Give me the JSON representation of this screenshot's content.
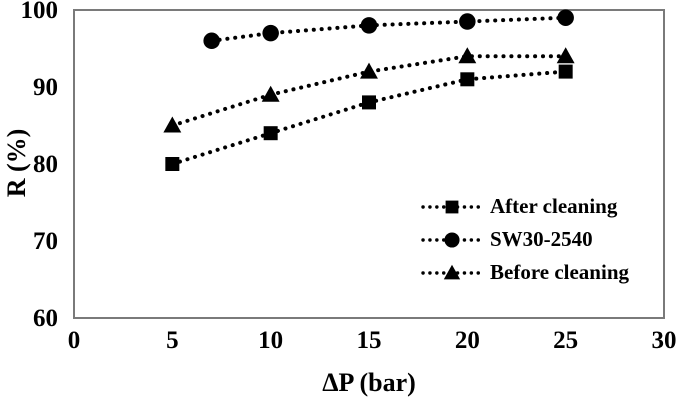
{
  "figure": {
    "background": "#ffffff"
  },
  "chart_data": {
    "type": "line",
    "title": "",
    "xlabel": "ΔP (bar)",
    "ylabel": "R (%)",
    "xlim": [
      0,
      30
    ],
    "ylim": [
      60,
      100
    ],
    "xticks": [
      0,
      5,
      10,
      15,
      20,
      25,
      30
    ],
    "yticks": [
      60,
      70,
      80,
      90,
      100
    ],
    "grid": false,
    "line_style": "dotted",
    "series_color": "#000000",
    "plot_border_color": "#7a7a7a",
    "legend_position": "inside-lower-right",
    "series": [
      {
        "name": "After cleaning",
        "marker": "square",
        "x": [
          5,
          10,
          15,
          20,
          25
        ],
        "y": [
          80,
          84,
          88,
          91,
          92
        ]
      },
      {
        "name": "SW30-2540",
        "marker": "circle",
        "x": [
          7,
          10,
          15,
          20,
          25
        ],
        "y": [
          96,
          97,
          98,
          98.5,
          99
        ]
      },
      {
        "name": "Before cleaning",
        "marker": "triangle",
        "x": [
          5,
          10,
          15,
          20,
          25
        ],
        "y": [
          85,
          89,
          92,
          94,
          94
        ]
      }
    ]
  },
  "legend": {
    "items": [
      {
        "label": "After cleaning",
        "marker": "square"
      },
      {
        "label": "SW30-2540",
        "marker": "circle"
      },
      {
        "label": "Before cleaning",
        "marker": "triangle"
      }
    ]
  }
}
